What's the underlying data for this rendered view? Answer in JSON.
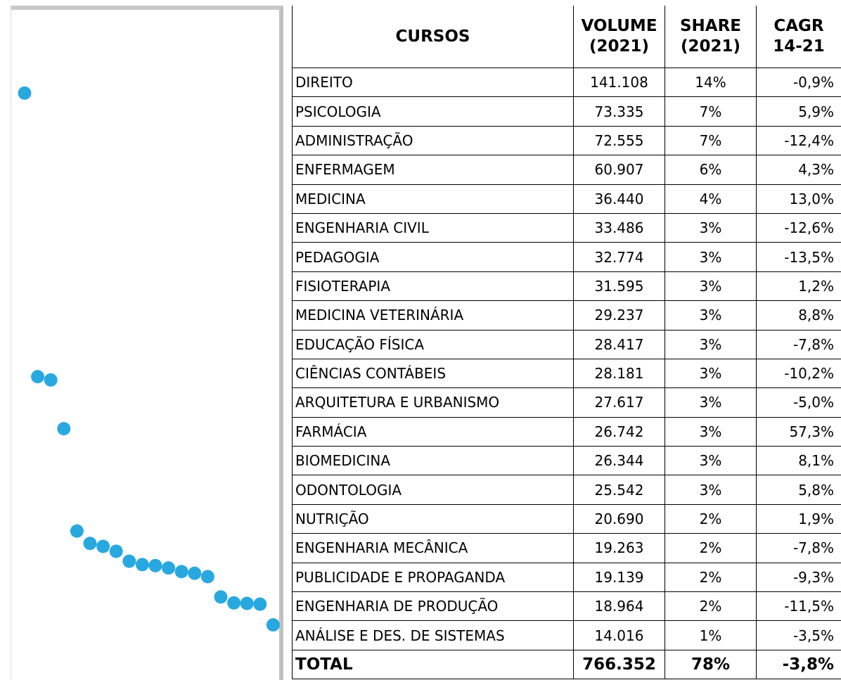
{
  "chart_data": {
    "type": "scatter",
    "color": "#29a8e0",
    "ylim": [
      0,
      160000
    ],
    "values": [
      141108,
      73335,
      72555,
      60907,
      36440,
      33486,
      32774,
      31595,
      29237,
      28417,
      28181,
      27617,
      26742,
      26344,
      25542,
      20690,
      19263,
      19139,
      18964,
      14016
    ]
  },
  "table": {
    "header": [
      [
        "CURSOS"
      ],
      [
        "VOLUME",
        "(2021)"
      ],
      [
        "SHARE",
        "(2021)"
      ],
      [
        "CAGR",
        "14-21"
      ]
    ],
    "rows": [
      [
        "DIREITO",
        "141.108",
        "14%",
        "-0,9%"
      ],
      [
        "PSICOLOGIA",
        "73.335",
        "7%",
        "5,9%"
      ],
      [
        "ADMINISTRAÇÃO",
        "72.555",
        "7%",
        "-12,4%"
      ],
      [
        "ENFERMAGEM",
        "60.907",
        "6%",
        "4,3%"
      ],
      [
        "MEDICINA",
        "36.440",
        "4%",
        "13,0%"
      ],
      [
        "ENGENHARIA CIVIL",
        "33.486",
        "3%",
        "-12,6%"
      ],
      [
        "PEDAGOGIA",
        "32.774",
        "3%",
        "-13,5%"
      ],
      [
        "FISIOTERAPIA",
        "31.595",
        "3%",
        "1,2%"
      ],
      [
        "MEDICINA VETERINÁRIA",
        "29.237",
        "3%",
        "8,8%"
      ],
      [
        "EDUCAÇÃO FÍSICA",
        "28.417",
        "3%",
        "-7,8%"
      ],
      [
        "CIÊNCIAS CONTÁBEIS",
        "28.181",
        "3%",
        "-10,2%"
      ],
      [
        "ARQUITETURA E URBANISMO",
        "27.617",
        "3%",
        "-5,0%"
      ],
      [
        "FARMÁCIA",
        "26.742",
        "3%",
        "57,3%"
      ],
      [
        "BIOMEDICINA",
        "26.344",
        "3%",
        "8,1%"
      ],
      [
        "ODONTOLOGIA",
        "25.542",
        "3%",
        "5,8%"
      ],
      [
        "NUTRIÇÃO",
        "20.690",
        "2%",
        "1,9%"
      ],
      [
        "ENGENHARIA MECÂNICA",
        "19.263",
        "2%",
        "-7,8%"
      ],
      [
        "PUBLICIDADE E PROPAGANDA",
        "19.139",
        "2%",
        "-9,3%"
      ],
      [
        "ENGENHARIA DE PRODUÇÃO",
        "18.964",
        "2%",
        "-11,5%"
      ],
      [
        "ANÁLISE E DES. DE SISTEMAS",
        "14.016",
        "1%",
        "-3,5%"
      ]
    ],
    "total": [
      "TOTAL",
      "766.352",
      "78%",
      "-3,8%"
    ]
  }
}
